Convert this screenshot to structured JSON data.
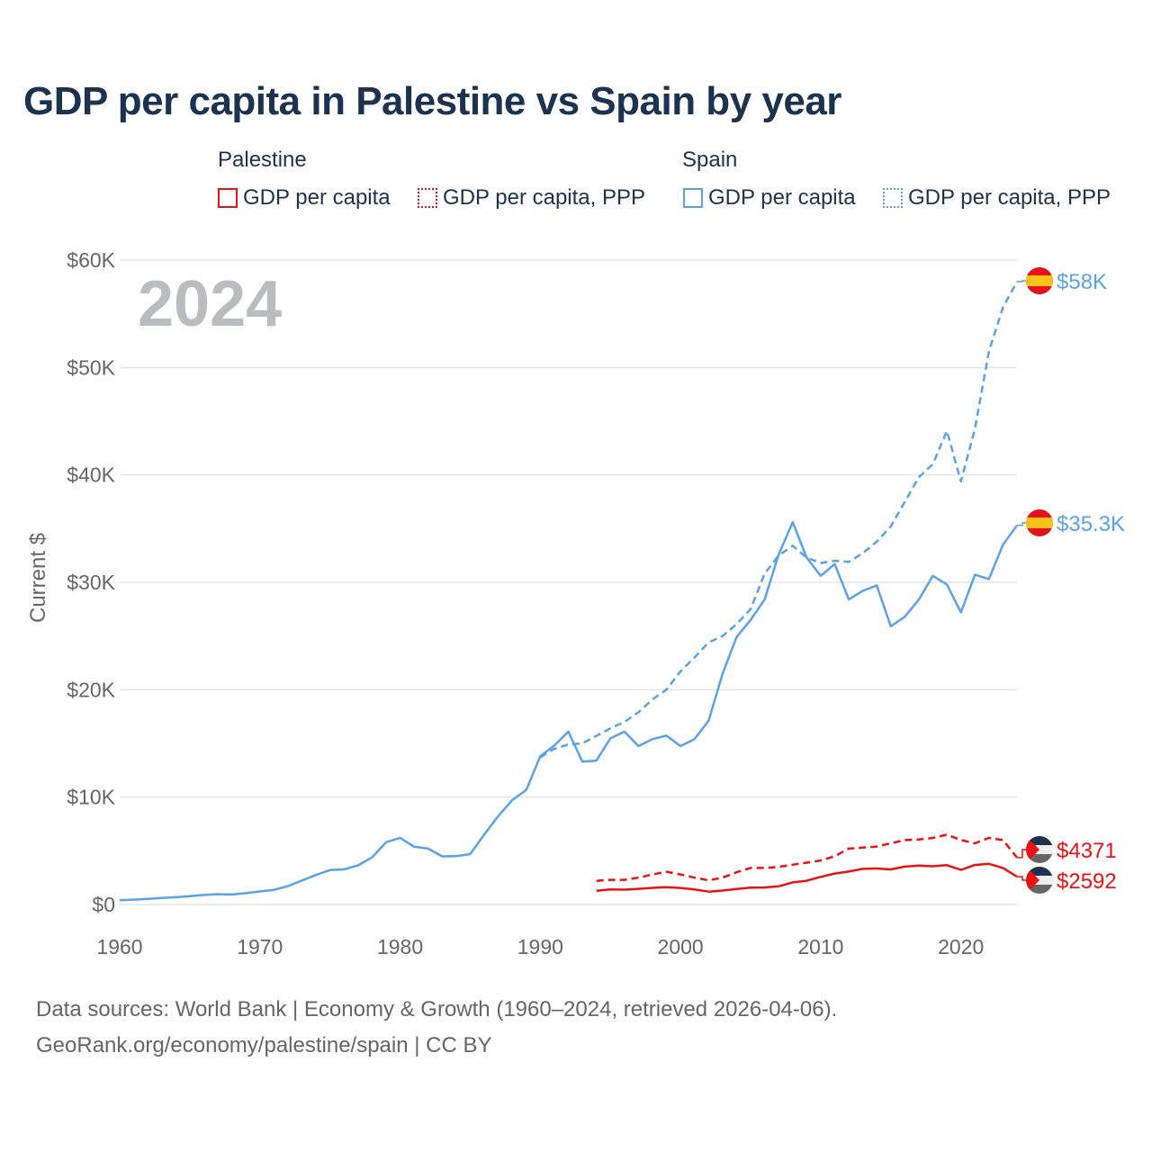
{
  "title": "GDP per capita in Palestine vs Spain by year",
  "legend": {
    "groups": [
      {
        "name": "Palestine",
        "items": [
          "GDP per capita",
          "GDP per capita, PPP"
        ],
        "color": "#ee1111"
      },
      {
        "name": "Spain",
        "items": [
          "GDP per capita",
          "GDP per capita, PPP"
        ],
        "color": "#5ba3e8"
      }
    ]
  },
  "footer": {
    "line1": "Data sources: World Bank | Economy & Growth (1960–2024, retrieved 2026-04-06).",
    "line2": "GeoRank.org/economy/palestine/spain | CC BY"
  },
  "chart_data": {
    "type": "line",
    "title": "GDP per capita in Palestine vs Spain by year",
    "current_year_label": "2024",
    "xlabel": "",
    "ylabel": "Current $",
    "xlim": [
      1960,
      2024
    ],
    "ylim": [
      0,
      60000
    ],
    "x_ticks": [
      "1960",
      "1970",
      "1980",
      "1990",
      "2000",
      "2010",
      "2020"
    ],
    "x_tick_values": [
      1960,
      1970,
      1980,
      1990,
      2000,
      2010,
      2020
    ],
    "y_ticks": [
      "$0",
      "$10K",
      "$20K",
      "$30K",
      "$40K",
      "$50K",
      "$60K"
    ],
    "y_tick_values": [
      0,
      10000,
      20000,
      30000,
      40000,
      50000,
      60000
    ],
    "grid": true,
    "series": [
      {
        "name": "Spain GDP per capita",
        "country": "Spain",
        "style": "solid",
        "color": "#5ba3e8",
        "end_label": "$35.3K",
        "start_year": 1960,
        "values": [
          396,
          451,
          520,
          609,
          675,
          774,
          889,
          960,
          933,
          1053,
          1212,
          1362,
          1709,
          2240,
          2752,
          3208,
          3271,
          3643,
          4379,
          5796,
          6209,
          5380,
          5200,
          4480,
          4500,
          4690,
          6510,
          8240,
          9720,
          10680,
          13800,
          14800,
          16100,
          13300,
          13400,
          15470,
          16100,
          14750,
          15400,
          15720,
          14750,
          15400,
          17100,
          21500,
          24900,
          26500,
          28400,
          32600,
          35600,
          32300,
          30600,
          31700,
          28400,
          29200,
          29700,
          25900,
          26800,
          28400,
          30600,
          29800,
          27200,
          30700,
          30300,
          33500,
          35300
        ]
      },
      {
        "name": "Spain GDP per capita, PPP",
        "country": "Spain",
        "style": "dashed",
        "color": "#5ba3e8",
        "end_label": "$58K",
        "start_year": 1990,
        "values": [
          13700,
          14500,
          14900,
          15000,
          15700,
          16400,
          17000,
          17900,
          19100,
          20000,
          21700,
          23000,
          24400,
          25000,
          26100,
          27500,
          30800,
          32500,
          33400,
          32300,
          31800,
          32000,
          31900,
          32700,
          33800,
          35200,
          37500,
          39800,
          41000,
          44100,
          39400,
          44300,
          51500,
          55600,
          58000
        ]
      },
      {
        "name": "Palestine GDP per capita",
        "country": "Palestine",
        "style": "solid",
        "color": "#ee1111",
        "end_label": "$2592",
        "start_year": 1994,
        "values": [
          1270,
          1400,
          1380,
          1460,
          1550,
          1610,
          1540,
          1400,
          1200,
          1300,
          1450,
          1570,
          1580,
          1690,
          2060,
          2210,
          2570,
          2880,
          3070,
          3320,
          3350,
          3270,
          3530,
          3620,
          3560,
          3660,
          3230,
          3680,
          3790,
          3400,
          2592
        ]
      },
      {
        "name": "Palestine GDP per capita, PPP",
        "country": "Palestine",
        "style": "dashed",
        "color": "#ee1111",
        "end_label": "$4371",
        "start_year": 1994,
        "values": [
          2200,
          2300,
          2300,
          2500,
          2800,
          3050,
          2800,
          2500,
          2250,
          2500,
          3000,
          3400,
          3400,
          3500,
          3700,
          3900,
          4100,
          4500,
          5200,
          5300,
          5400,
          5700,
          6000,
          6050,
          6200,
          6500,
          6000,
          5700,
          6200,
          6000,
          4371
        ]
      }
    ]
  }
}
